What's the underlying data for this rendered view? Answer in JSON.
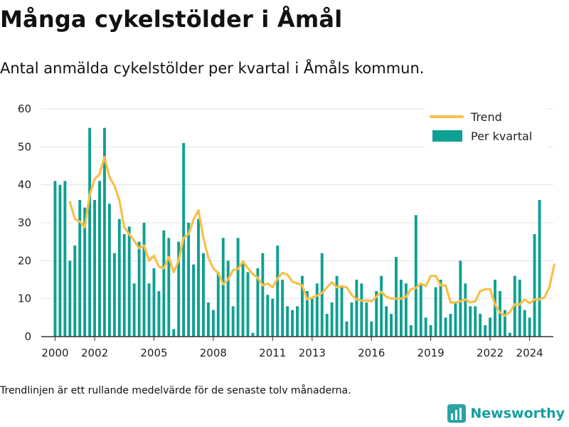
{
  "header": {
    "title": "Många cykelstölder i Åmål",
    "subtitle": "Antal anmälda cykelstölder per kvartal i Åmåls kommun."
  },
  "footer": {
    "note": "Trendlinjen är ett rullande medelvärde för de senaste tolv månaderna.",
    "brand": "Newsworthy",
    "brand_icon": "newsworthy-logo-icon"
  },
  "colors": {
    "bars": "#0ea091",
    "trend": "#f7c04a",
    "grid": "#e3e3e3",
    "axis": "#333333",
    "brand": "#179ea0"
  },
  "chart_data": {
    "type": "bar",
    "title": "Många cykelstölder i Åmål",
    "subtitle": "Antal anmälda cykelstölder per kvartal i Åmåls kommun.",
    "xlabel": "",
    "ylabel": "",
    "ylim": [
      0,
      60
    ],
    "yticks": [
      0,
      10,
      20,
      30,
      40,
      50,
      60
    ],
    "x_range": [
      1999.3,
      2025.2
    ],
    "xticks": [
      2000,
      2002,
      2005,
      2008,
      2011,
      2013,
      2016,
      2019,
      2022,
      2024
    ],
    "xtick_labels": [
      "2000",
      "2002",
      "2005",
      "2008",
      "2011",
      "2013",
      "2016",
      "2019",
      "2022",
      "2024"
    ],
    "grid": true,
    "legend_position": "top-right",
    "first_quarter_start": 2000,
    "quarter_step": 0.25,
    "series": [
      {
        "name": "Per kvartal",
        "type": "bar",
        "color": "#0ea091",
        "values": [
          41,
          40,
          41,
          20,
          24,
          36,
          34,
          55,
          36,
          41,
          55,
          35,
          22,
          31,
          27,
          29,
          14,
          25,
          30,
          14,
          18,
          12,
          28,
          26,
          2,
          25,
          51,
          30,
          19,
          31,
          22,
          9,
          7,
          17,
          26,
          20,
          8,
          26,
          20,
          17,
          1,
          18,
          22,
          11,
          10,
          24,
          15,
          8,
          7,
          8,
          16,
          12,
          10,
          14,
          22,
          6,
          9,
          16,
          13,
          4,
          9,
          15,
          14,
          9,
          4,
          12,
          16,
          8,
          6,
          21,
          15,
          14,
          3,
          32,
          14,
          5,
          3,
          13,
          15,
          5,
          6,
          9,
          20,
          14,
          8,
          8,
          6,
          3,
          5,
          15,
          12,
          7,
          1,
          16,
          15,
          7,
          5,
          27,
          36
        ]
      },
      {
        "name": "Trend",
        "type": "line",
        "color": "#f7c04a",
        "start_quarter_index": 3,
        "values": [
          35.5,
          31,
          30.3,
          28.8,
          37.3,
          41.5,
          42.8,
          47.3,
          42.0,
          39.8,
          36.0,
          28.8,
          27.0,
          25.3,
          23.3,
          24.0,
          20.0,
          21.3,
          18.5,
          18.0,
          21.0,
          17.0,
          20.0,
          26.0,
          27.0,
          30.8,
          33.3,
          26.0,
          20.8,
          18.0,
          16.8,
          13.8,
          15.0,
          17.5,
          17.8,
          19.8,
          18.0,
          16.5,
          15.5,
          13.5,
          14.0,
          13.0,
          15.3,
          16.8,
          16.3,
          14.5,
          14.0,
          13.5,
          9.8,
          10.3,
          10.8,
          11.5,
          13.0,
          14.3,
          13.0,
          13.3,
          13.0,
          11.0,
          9.8,
          9.5,
          9.5,
          9.3,
          10.5,
          11.8,
          10.5,
          10.0,
          10.0,
          10.0,
          10.5,
          12.5,
          12.8,
          14.0,
          13.3,
          16.0,
          16.0,
          13.5,
          13.5,
          9.0,
          9.0,
          9.3,
          9.8,
          9.0,
          9.3,
          12.0,
          12.5,
          12.5,
          8.5,
          6.3,
          5.5,
          6.5,
          8.5,
          8.5,
          9.8,
          8.8,
          9.8,
          9.8,
          10.3,
          13.0,
          19.0
        ]
      }
    ]
  }
}
